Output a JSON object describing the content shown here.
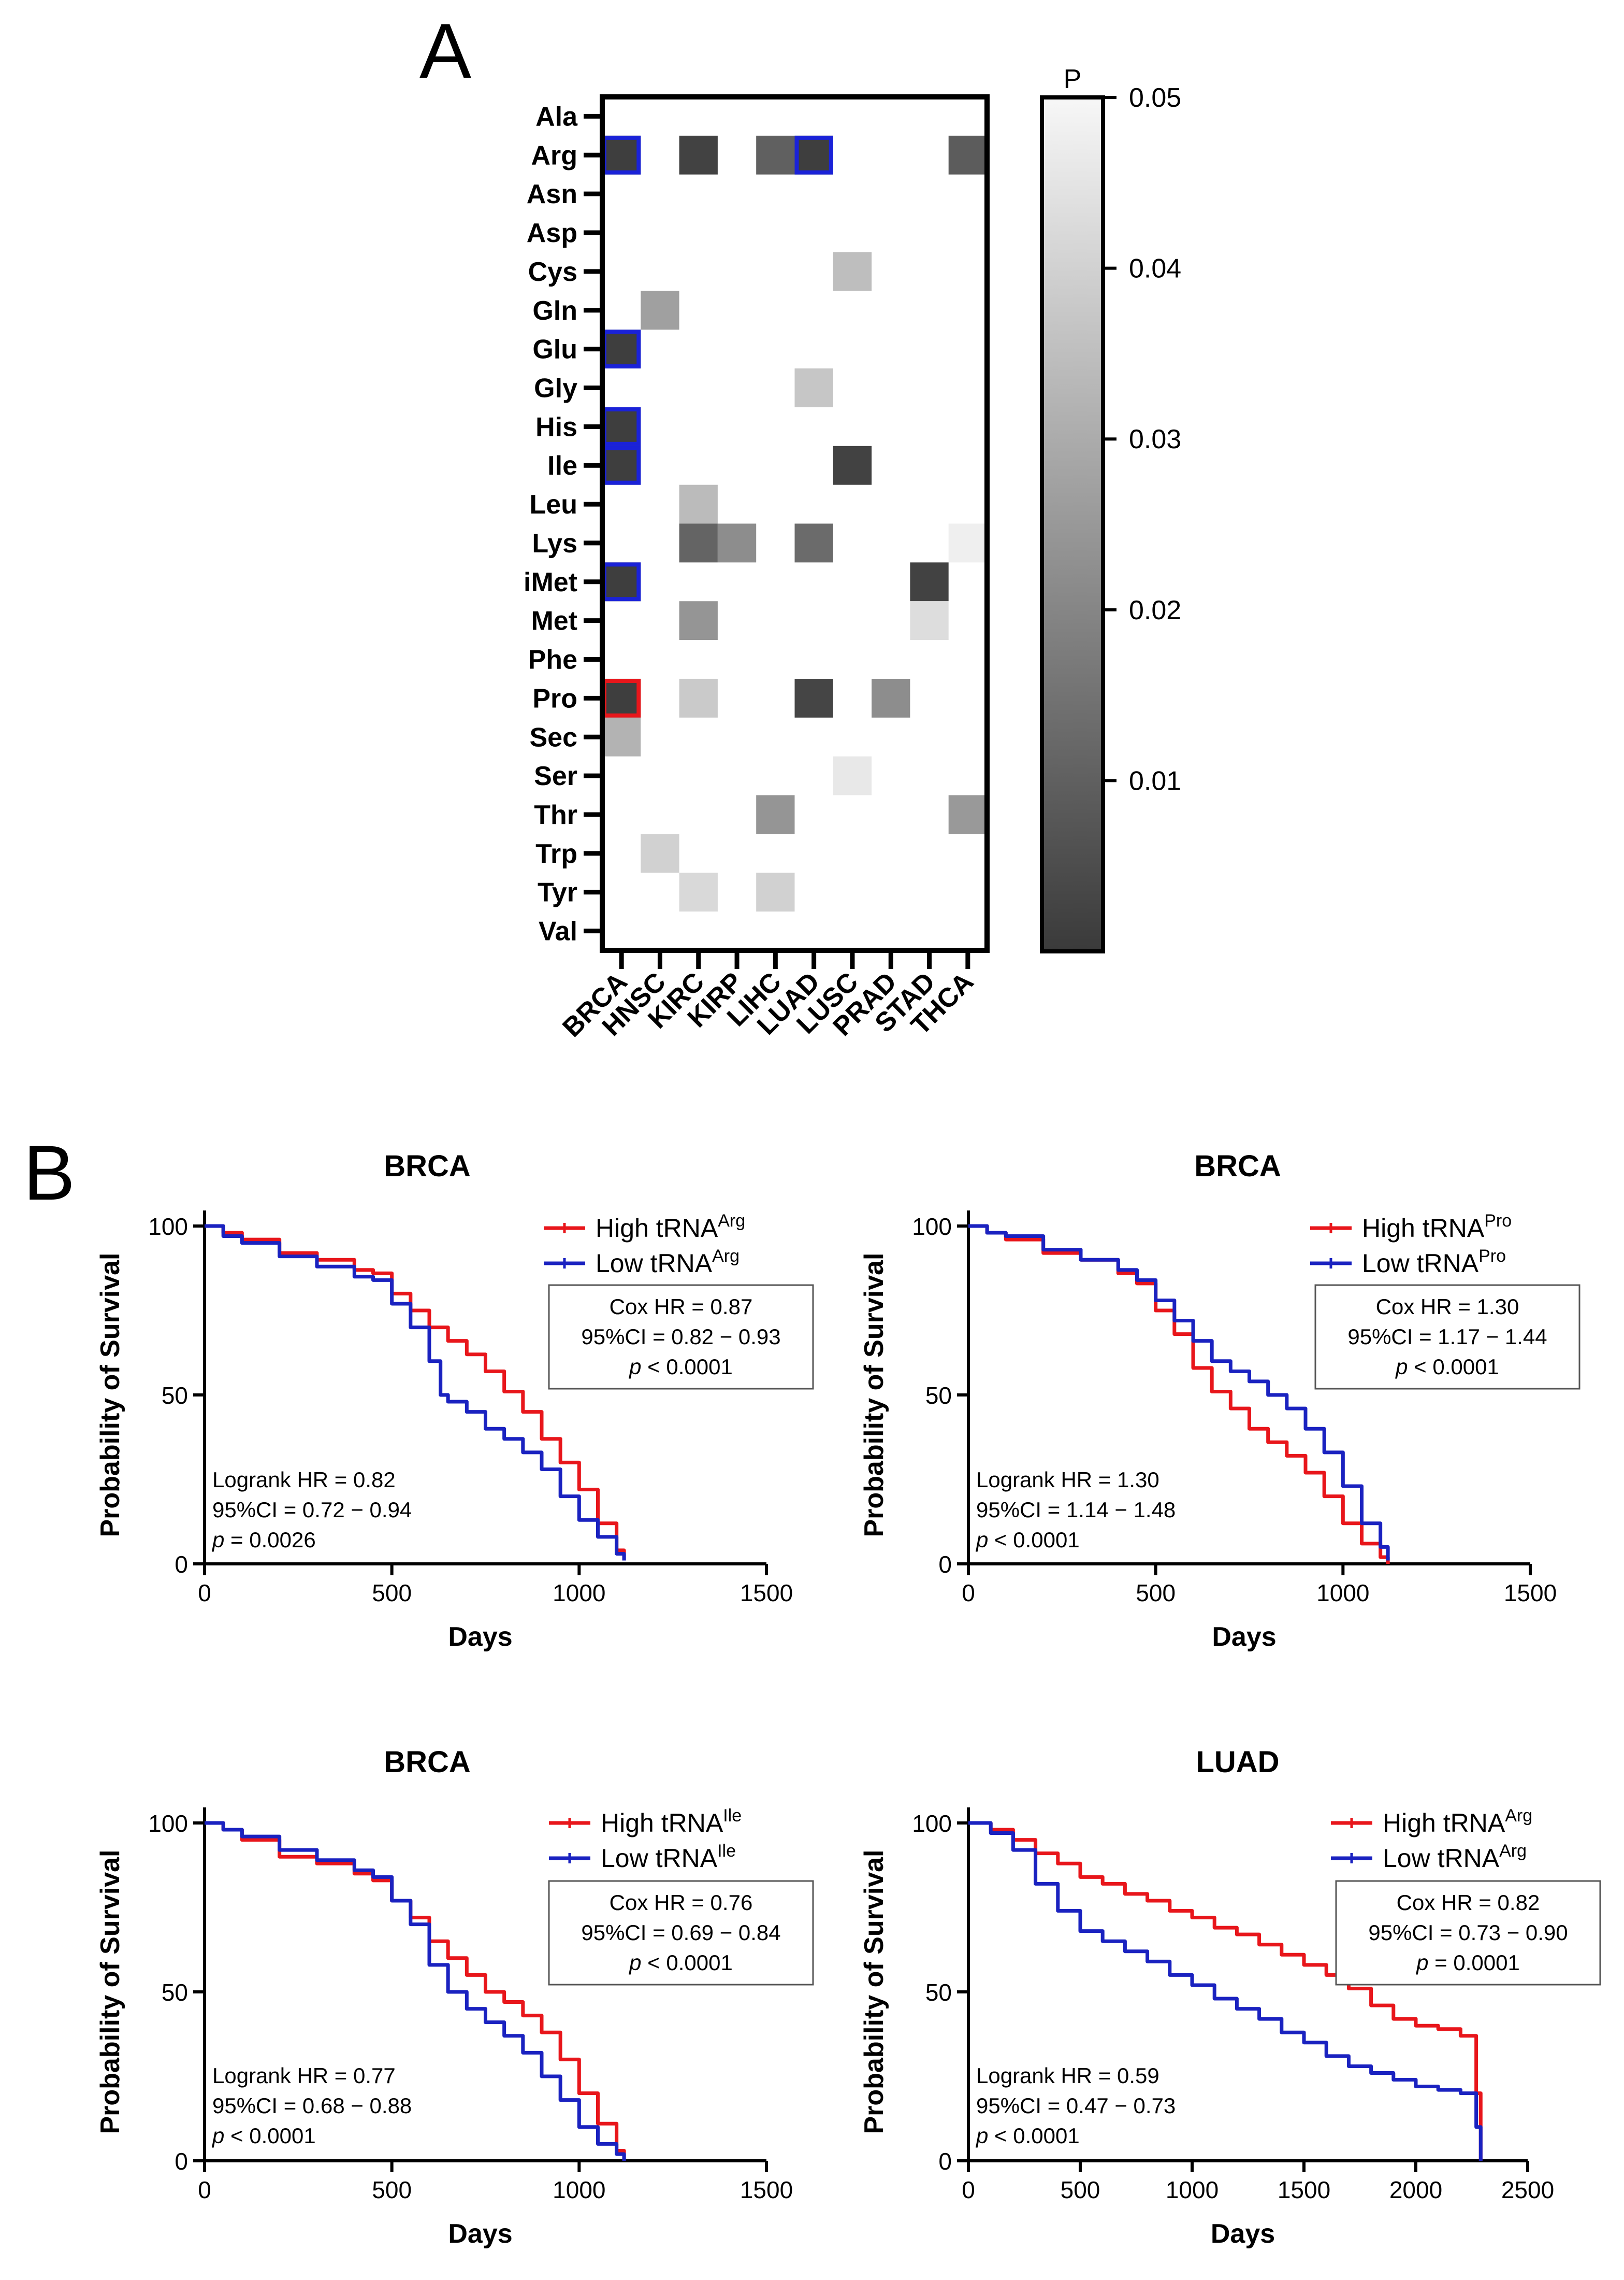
{
  "panel_labels": {
    "a": "A",
    "b": "B"
  },
  "chart_data": [
    {
      "type": "heatmap",
      "title": "",
      "rows": [
        "Ala",
        "Arg",
        "Asn",
        "Asp",
        "Cys",
        "Gln",
        "Glu",
        "Gly",
        "His",
        "Ile",
        "Leu",
        "Lys",
        "iMet",
        "Met",
        "Phe",
        "Pro",
        "Sec",
        "Ser",
        "Thr",
        "Trp",
        "Tyr",
        "Val"
      ],
      "columns": [
        "BRCA",
        "HNSC",
        "KIRC",
        "KIRP",
        "LIHC",
        "LUAD",
        "LUSC",
        "PRAD",
        "STAD",
        "THCA"
      ],
      "cells": [
        {
          "row": "Arg",
          "col": "BRCA",
          "p": 0.001,
          "outline": "blue"
        },
        {
          "row": "Arg",
          "col": "KIRC",
          "p": 0.002
        },
        {
          "row": "Arg",
          "col": "LIHC",
          "p": 0.01
        },
        {
          "row": "Arg",
          "col": "LUAD",
          "p": 0.001,
          "outline": "blue"
        },
        {
          "row": "Arg",
          "col": "THCA",
          "p": 0.009
        },
        {
          "row": "Cys",
          "col": "LUSC",
          "p": 0.035
        },
        {
          "row": "Gln",
          "col": "HNSC",
          "p": 0.027
        },
        {
          "row": "Glu",
          "col": "BRCA",
          "p": 0.001,
          "outline": "blue"
        },
        {
          "row": "Gly",
          "col": "LUAD",
          "p": 0.037
        },
        {
          "row": "His",
          "col": "BRCA",
          "p": 0.001,
          "outline": "blue"
        },
        {
          "row": "Ile",
          "col": "BRCA",
          "p": 0.001,
          "outline": "blue"
        },
        {
          "row": "Ile",
          "col": "LUSC",
          "p": 0.002
        },
        {
          "row": "Leu",
          "col": "KIRC",
          "p": 0.034
        },
        {
          "row": "Lys",
          "col": "KIRC",
          "p": 0.011
        },
        {
          "row": "Lys",
          "col": "KIRP",
          "p": 0.022
        },
        {
          "row": "Lys",
          "col": "LUAD",
          "p": 0.013
        },
        {
          "row": "Lys",
          "col": "THCA",
          "p": 0.048
        },
        {
          "row": "iMet",
          "col": "BRCA",
          "p": 0.001,
          "outline": "blue"
        },
        {
          "row": "iMet",
          "col": "STAD",
          "p": 0.002
        },
        {
          "row": "Met",
          "col": "KIRC",
          "p": 0.024
        },
        {
          "row": "Met",
          "col": "STAD",
          "p": 0.043
        },
        {
          "row": "Pro",
          "col": "BRCA",
          "p": 0.001,
          "outline": "red"
        },
        {
          "row": "Pro",
          "col": "KIRC",
          "p": 0.038
        },
        {
          "row": "Pro",
          "col": "LUAD",
          "p": 0.003
        },
        {
          "row": "Pro",
          "col": "PRAD",
          "p": 0.022
        },
        {
          "row": "Sec",
          "col": "BRCA",
          "p": 0.032
        },
        {
          "row": "Ser",
          "col": "LUSC",
          "p": 0.046
        },
        {
          "row": "Thr",
          "col": "LIHC",
          "p": 0.024
        },
        {
          "row": "Thr",
          "col": "THCA",
          "p": 0.025
        },
        {
          "row": "Trp",
          "col": "HNSC",
          "p": 0.04
        },
        {
          "row": "Tyr",
          "col": "KIRC",
          "p": 0.042
        },
        {
          "row": "Tyr",
          "col": "LIHC",
          "p": 0.04
        }
      ],
      "colorbar": {
        "title": "P",
        "range": [
          0,
          0.05
        ],
        "ticks": [
          0.05,
          0.04,
          0.03,
          0.02,
          0.01
        ],
        "tick_labels": [
          "0.05",
          "0.04",
          "0.03",
          "0.02",
          "0.01"
        ],
        "colors": {
          "low": "#3a3a3a",
          "high": "#f7f7f7"
        }
      }
    },
    {
      "type": "line",
      "title": "BRCA",
      "xlabel": "Days",
      "ylabel": "Probability of Survival",
      "xlim": [
        0,
        1500
      ],
      "ylim": [
        0,
        100
      ],
      "xticks": [
        0,
        500,
        1000,
        1500
      ],
      "yticks": [
        0,
        50,
        100
      ],
      "xtick_labels": [
        "0",
        "500",
        "1000",
        "1500"
      ],
      "ytick_labels": [
        "0",
        "50",
        "100"
      ],
      "legend": [
        {
          "name": "High tRNA",
          "sup": "Arg",
          "color": "#e8161b"
        },
        {
          "name": "Low tRNA",
          "sup": "Arg",
          "color": "#1a22c0"
        }
      ],
      "series": [
        {
          "name": "High tRNA Arg",
          "color": "#e8161b",
          "x": [
            0,
            50,
            100,
            200,
            300,
            400,
            450,
            500,
            550,
            600,
            650,
            700,
            750,
            800,
            850,
            900,
            950,
            1000,
            1050,
            1100,
            1120
          ],
          "y": [
            100,
            98,
            96,
            92,
            90,
            87,
            86,
            80,
            75,
            70,
            66,
            62,
            57,
            51,
            45,
            37,
            30,
            22,
            12,
            4,
            1
          ]
        },
        {
          "name": "Low tRNA Arg",
          "color": "#1a22c0",
          "x": [
            0,
            50,
            100,
            200,
            300,
            400,
            450,
            500,
            550,
            600,
            630,
            650,
            700,
            750,
            800,
            850,
            900,
            950,
            1000,
            1050,
            1100,
            1120
          ],
          "y": [
            100,
            97,
            95,
            91,
            88,
            85,
            84,
            77,
            70,
            60,
            50,
            48,
            45,
            40,
            37,
            33,
            28,
            20,
            13,
            8,
            3,
            1
          ]
        }
      ],
      "cox_box": [
        "Cox HR = 0.87",
        "95%CI = 0.82 − 0.93",
        "< 0.0001"
      ],
      "logrank": [
        "Logrank HR = 0.82",
        "95%CI = 0.72 − 0.94",
        "= 0.0026"
      ],
      "p_symbol": "p"
    },
    {
      "type": "line",
      "title": "BRCA",
      "xlabel": "Days",
      "ylabel": "Probability of Survival",
      "xlim": [
        0,
        1500
      ],
      "ylim": [
        0,
        100
      ],
      "xticks": [
        0,
        500,
        1000,
        1500
      ],
      "yticks": [
        0,
        50,
        100
      ],
      "xtick_labels": [
        "0",
        "500",
        "1000",
        "1500"
      ],
      "ytick_labels": [
        "0",
        "50",
        "100"
      ],
      "legend": [
        {
          "name": "High tRNA",
          "sup": "Pro",
          "color": "#e8161b"
        },
        {
          "name": "Low tRNA",
          "sup": "Pro",
          "color": "#1a22c0"
        }
      ],
      "series": [
        {
          "name": "High tRNA Pro",
          "color": "#e8161b",
          "x": [
            0,
            50,
            100,
            200,
            300,
            400,
            450,
            500,
            550,
            600,
            650,
            700,
            750,
            800,
            850,
            900,
            950,
            1000,
            1050,
            1100,
            1120
          ],
          "y": [
            100,
            98,
            96,
            92,
            90,
            86,
            83,
            75,
            68,
            58,
            51,
            46,
            40,
            36,
            32,
            27,
            20,
            12,
            6,
            2,
            0
          ]
        },
        {
          "name": "Low tRNA Pro",
          "color": "#1a22c0",
          "x": [
            0,
            50,
            100,
            200,
            300,
            400,
            450,
            500,
            550,
            600,
            650,
            700,
            750,
            800,
            850,
            900,
            950,
            1000,
            1050,
            1100,
            1120
          ],
          "y": [
            100,
            98,
            97,
            93,
            90,
            87,
            84,
            78,
            72,
            66,
            60,
            57,
            54,
            50,
            46,
            40,
            33,
            23,
            12,
            5,
            1
          ]
        }
      ],
      "cox_box": [
        "Cox HR = 1.30",
        "95%CI = 1.17 − 1.44",
        "< 0.0001"
      ],
      "logrank": [
        "Logrank HR = 1.30",
        "95%CI = 1.14 − 1.48",
        "< 0.0001"
      ],
      "p_symbol": "p"
    },
    {
      "type": "line",
      "title": "BRCA",
      "xlabel": "Days",
      "ylabel": "Probability of Survival",
      "xlim": [
        0,
        1500
      ],
      "ylim": [
        0,
        100
      ],
      "xticks": [
        0,
        500,
        1000,
        1500
      ],
      "yticks": [
        0,
        50,
        100
      ],
      "xtick_labels": [
        "0",
        "500",
        "1000",
        "1500"
      ],
      "ytick_labels": [
        "0",
        "50",
        "100"
      ],
      "legend": [
        {
          "name": "High tRNA",
          "sup": "Ile",
          "color": "#e8161b"
        },
        {
          "name": "Low tRNA",
          "sup": "Ile",
          "color": "#1a22c0"
        }
      ],
      "series": [
        {
          "name": "High tRNA Ile",
          "color": "#e8161b",
          "x": [
            0,
            50,
            100,
            200,
            300,
            400,
            450,
            500,
            550,
            600,
            650,
            700,
            750,
            800,
            850,
            900,
            950,
            1000,
            1050,
            1100,
            1120
          ],
          "y": [
            100,
            98,
            95,
            90,
            88,
            85,
            83,
            77,
            72,
            65,
            60,
            55,
            50,
            47,
            43,
            38,
            30,
            20,
            11,
            3,
            0
          ]
        },
        {
          "name": "Low tRNA Ile",
          "color": "#1a22c0",
          "x": [
            0,
            50,
            100,
            200,
            300,
            400,
            450,
            500,
            550,
            600,
            650,
            700,
            750,
            800,
            850,
            900,
            950,
            1000,
            1050,
            1100,
            1120
          ],
          "y": [
            100,
            98,
            96,
            92,
            89,
            86,
            84,
            77,
            70,
            58,
            50,
            45,
            41,
            37,
            32,
            25,
            18,
            10,
            5,
            2,
            0
          ]
        }
      ],
      "cox_box": [
        "Cox HR = 0.76",
        "95%CI = 0.69 − 0.84",
        "< 0.0001"
      ],
      "logrank": [
        "Logrank HR = 0.77",
        "95%CI = 0.68 − 0.88",
        "< 0.0001"
      ],
      "p_symbol": "p"
    },
    {
      "type": "line",
      "title": "LUAD",
      "xlabel": "Days",
      "ylabel": "Probability of Survival",
      "xlim": [
        0,
        2500
      ],
      "ylim": [
        0,
        100
      ],
      "xticks": [
        0,
        500,
        1000,
        1500,
        2000,
        2500
      ],
      "yticks": [
        0,
        50,
        100
      ],
      "xtick_labels": [
        "0",
        "500",
        "1000",
        "1500",
        "2000",
        "2500"
      ],
      "ytick_labels": [
        "0",
        "50",
        "100"
      ],
      "legend": [
        {
          "name": "High tRNA",
          "sup": "Arg",
          "color": "#e8161b"
        },
        {
          "name": "Low tRNA",
          "sup": "Arg",
          "color": "#1a22c0"
        }
      ],
      "series": [
        {
          "name": "High tRNA Arg",
          "color": "#e8161b",
          "x": [
            0,
            100,
            200,
            300,
            400,
            500,
            600,
            700,
            800,
            900,
            1000,
            1100,
            1200,
            1300,
            1400,
            1500,
            1600,
            1700,
            1800,
            1900,
            2000,
            2100,
            2200,
            2250,
            2270,
            2290
          ],
          "y": [
            100,
            98,
            95,
            91,
            88,
            84,
            82,
            79,
            77,
            74,
            72,
            69,
            67,
            64,
            61,
            58,
            55,
            51,
            46,
            42,
            40,
            39,
            37,
            37,
            20,
            0
          ]
        },
        {
          "name": "Low tRNA Arg",
          "color": "#1a22c0",
          "x": [
            0,
            100,
            200,
            300,
            400,
            500,
            600,
            700,
            800,
            900,
            1000,
            1100,
            1200,
            1300,
            1400,
            1500,
            1600,
            1700,
            1800,
            1900,
            2000,
            2100,
            2200,
            2250,
            2270,
            2290
          ],
          "y": [
            100,
            97,
            92,
            82,
            74,
            68,
            65,
            62,
            59,
            55,
            52,
            48,
            45,
            42,
            38,
            35,
            31,
            28,
            26,
            24,
            22,
            21,
            20,
            20,
            10,
            0
          ]
        }
      ],
      "cox_box": [
        "Cox HR = 0.82",
        "95%CI = 0.73 − 0.90",
        "= 0.0001"
      ],
      "logrank": [
        "Logrank HR = 0.59",
        "95%CI = 0.47 − 0.73",
        "< 0.0001"
      ],
      "p_symbol": "p"
    }
  ]
}
